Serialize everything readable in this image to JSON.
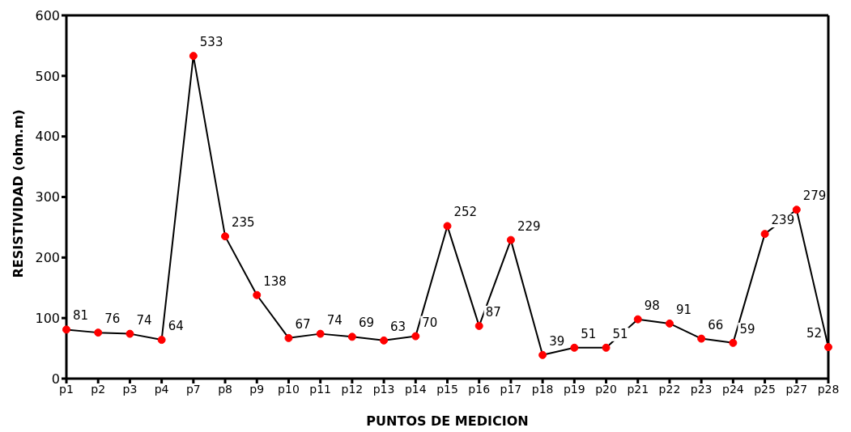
{
  "chart_data": {
    "type": "line",
    "xlabel": "PUNTOS DE MEDICION",
    "ylabel": "RESISTIVIDAD (ohm.m)",
    "categories": [
      "p1",
      "p2",
      "p3",
      "p4",
      "p7",
      "p8",
      "p9",
      "p10",
      "p11",
      "p12",
      "p13",
      "p14",
      "p15",
      "p16",
      "p17",
      "p18",
      "p19",
      "p20",
      "p21",
      "p22",
      "p23",
      "p24",
      "p25",
      "p27",
      "p28"
    ],
    "series": [
      {
        "color": "#000000",
        "colors": [
          "#ff0000",
          "#ff0000",
          "#ff0000",
          "#ff0000",
          "#ff0000",
          "#ff0000",
          "#ff0000",
          "#ff0000",
          "#ff0000",
          "#ff0000",
          "#ff0000",
          "#ff0000",
          "#ff0000",
          "#ff0000",
          "#ff0000",
          "#ff0000",
          "#ff0000",
          "#ff0000",
          "#ff0000",
          "#ff0000",
          "#ff0000",
          "#ff0000",
          "#ff0000",
          "#ff0000",
          "#ff0000"
        ],
        "values": [
          81,
          76,
          74,
          64,
          533,
          235,
          138,
          67,
          74,
          69,
          63,
          70,
          252,
          87,
          229,
          39,
          51,
          51,
          98,
          91,
          66,
          59,
          239,
          279,
          52
        ]
      }
    ],
    "ylim": [
      0,
      600
    ],
    "yticks": [
      0,
      100,
      200,
      300,
      400,
      500,
      600
    ],
    "grid": false,
    "legend": false,
    "marker": "circle",
    "line_style": "solid",
    "data_labels": true
  }
}
